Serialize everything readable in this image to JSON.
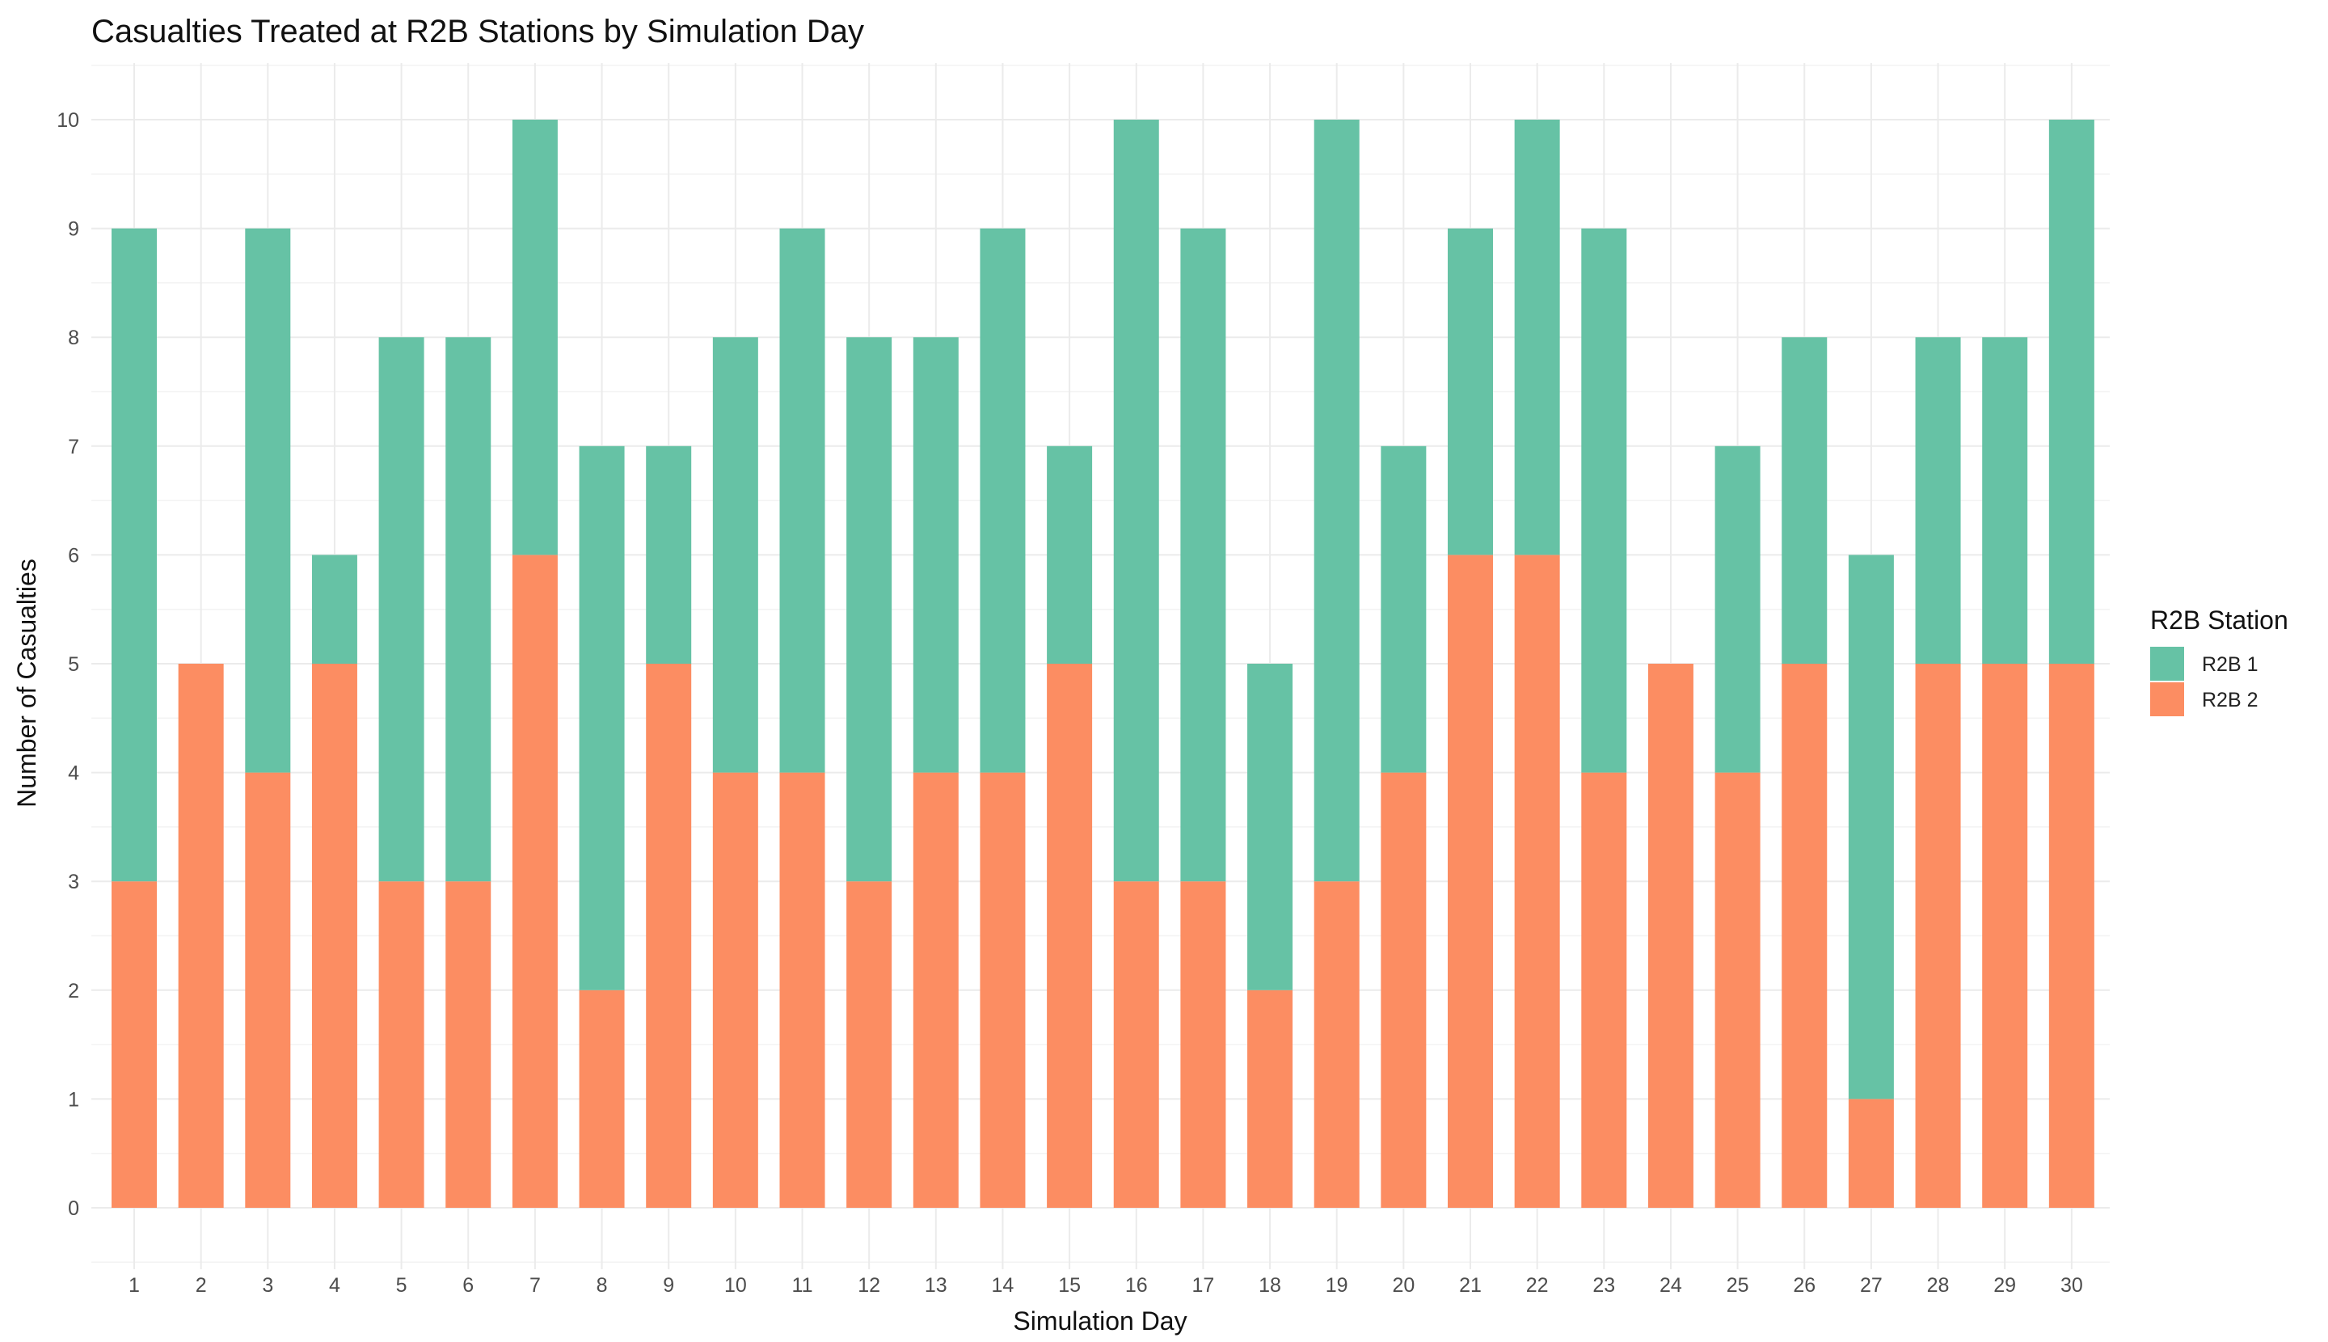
{
  "chart_data": {
    "type": "bar",
    "stacked": true,
    "title": "Casualties Treated at R2B Stations by Simulation Day",
    "xlabel": "Simulation Day",
    "ylabel": "Number of Casualties",
    "categories": [
      "1",
      "2",
      "3",
      "4",
      "5",
      "6",
      "7",
      "8",
      "9",
      "10",
      "11",
      "12",
      "13",
      "14",
      "15",
      "16",
      "17",
      "18",
      "19",
      "20",
      "21",
      "22",
      "23",
      "24",
      "25",
      "26",
      "27",
      "28",
      "29",
      "30"
    ],
    "series": [
      {
        "name": "R2B 2",
        "color": "#fc8d62",
        "values": [
          3,
          5,
          4,
          5,
          3,
          3,
          6,
          2,
          5,
          4,
          4,
          3,
          4,
          4,
          5,
          3,
          3,
          2,
          3,
          4,
          6,
          6,
          4,
          5,
          4,
          5,
          1,
          5,
          5,
          5
        ]
      },
      {
        "name": "R2B 1",
        "color": "#66c2a5",
        "values": [
          6,
          0,
          5,
          1,
          5,
          5,
          4,
          5,
          2,
          4,
          5,
          5,
          4,
          5,
          2,
          7,
          6,
          3,
          7,
          3,
          3,
          4,
          5,
          0,
          3,
          3,
          5,
          3,
          3,
          5
        ]
      }
    ],
    "ylim": [
      0,
      10.5
    ],
    "yticks": [
      0,
      1,
      2,
      3,
      4,
      5,
      6,
      7,
      8,
      9,
      10
    ],
    "grid": true,
    "legend": {
      "title": "R2B Station",
      "position": "right",
      "entries": [
        "R2B 1",
        "R2B 2"
      ]
    }
  }
}
